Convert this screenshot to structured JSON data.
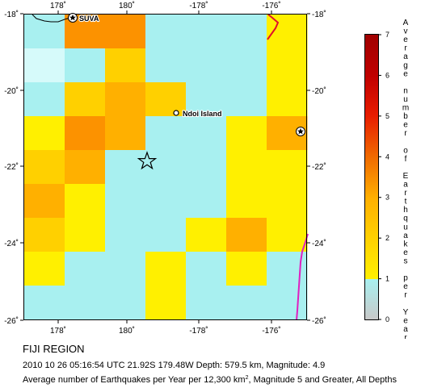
{
  "map": {
    "grid_rows": [
      [
        "#a8f0f0",
        "#fc9200",
        "#fc9200",
        "#a8f0f0",
        "#a8f0f0",
        "#a8f0f0",
        "#fff000"
      ],
      [
        "#d6fafa",
        "#a8f0f0",
        "#ffd000",
        "#a8f0f0",
        "#a8f0f0",
        "#a8f0f0",
        "#fff000"
      ],
      [
        "#a8f0f0",
        "#ffd000",
        "#ffb000",
        "#ffd000",
        "#a8f0f0",
        "#a8f0f0",
        "#fff000"
      ],
      [
        "#fff000",
        "#fc9200",
        "#ffb000",
        "#a8f0f0",
        "#a8f0f0",
        "#fff000",
        "#ffb000"
      ],
      [
        "#ffd000",
        "#ffb000",
        "#a8f0f0",
        "#a8f0f0",
        "#a8f0f0",
        "#fff000",
        "#fff000"
      ],
      [
        "#ffb000",
        "#fff000",
        "#a8f0f0",
        "#a8f0f0",
        "#a8f0f0",
        "#fff000",
        "#fff000"
      ],
      [
        "#ffd000",
        "#fff000",
        "#a8f0f0",
        "#a8f0f0",
        "#fff000",
        "#ffb000",
        "#fff000"
      ],
      [
        "#fff000",
        "#a8f0f0",
        "#a8f0f0",
        "#fff000",
        "#a8f0f0",
        "#fff000",
        "#a8f0f0"
      ],
      [
        "#a8f0f0",
        "#a8f0f0",
        "#a8f0f0",
        "#fff000",
        "#a8f0f0",
        "#a8f0f0",
        "#a8f0f0"
      ]
    ],
    "longitude_ticks": [
      "178˚",
      "180˚",
      "-178˚",
      "-176˚"
    ],
    "latitude_ticks": [
      "-18˚",
      "-20˚",
      "-22˚",
      "-24˚",
      "-26˚"
    ],
    "places": {
      "suva": "SUVA",
      "ndoi": "Ndoi Island"
    }
  },
  "legend": {
    "ticks": [
      "7",
      "6",
      "5",
      "4",
      "3",
      "2",
      "1",
      "0"
    ],
    "bands": [
      {
        "from": 0,
        "to": 1,
        "color": "#c8c8c8"
      },
      {
        "from": 1,
        "to": 2,
        "color": "#fff000"
      },
      {
        "from": 2,
        "to": 3,
        "color": "#ffd000"
      },
      {
        "from": 3,
        "to": 4,
        "color": "#ffb000"
      },
      {
        "from": 4,
        "to": 5,
        "color": "#f06a00"
      },
      {
        "from": 5,
        "to": 6,
        "color": "#e81c00"
      },
      {
        "from": 6,
        "to": 7,
        "color": "#a80000"
      }
    ],
    "title_letters": [
      "A",
      "v",
      "e",
      "r",
      "a",
      "g",
      "e",
      "",
      "n",
      "u",
      "m",
      "b",
      "e",
      "r",
      "",
      "o",
      "f",
      "",
      "E",
      "a",
      "r",
      "t",
      "h",
      "q",
      "u",
      "a",
      "k",
      "e",
      "s",
      "",
      "p",
      "e",
      "r",
      "",
      "Y",
      "e",
      "a",
      "r"
    ]
  },
  "caption": {
    "region": "FIJI REGION",
    "event": "2010 10 26 05:16:54 UTC 21.92S 179.48W Depth: 579.5 km, Magnitude: 4.9",
    "average_before": "Average number of Earthquakes per Year per 12,300 km",
    "average_sup": "2",
    "average_after": ", Magnitude 5 and Greater, All Depths"
  }
}
